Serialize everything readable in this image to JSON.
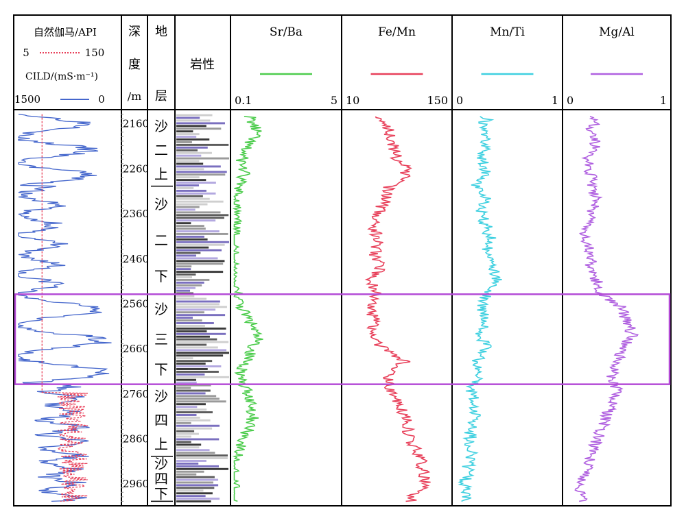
{
  "chart_data": {
    "type": "line",
    "header": {
      "log_col": {
        "gamma_label": "自然伽马/API",
        "gamma_min": "5",
        "gamma_max": "150",
        "cild_label": "CILD/(mS·m⁻¹)",
        "cild_min": "1500",
        "cild_max": "0"
      },
      "depth_label": [
        "深",
        "度",
        "/m"
      ],
      "strata_label": [
        "地",
        "层"
      ],
      "lith_label": "岩性"
    },
    "depth_axis": {
      "range": [
        2130,
        3010
      ],
      "ticks": [
        {
          "value": 2160,
          "label": "2160"
        },
        {
          "value": 2260,
          "label": "2260"
        },
        {
          "value": 2360,
          "label": "2360"
        },
        {
          "value": 2460,
          "label": "2460"
        },
        {
          "value": 2560,
          "label": "2560"
        },
        {
          "value": 2660,
          "label": "2660"
        },
        {
          "value": 2760,
          "label": "2760"
        },
        {
          "value": 2860,
          "label": "2860"
        },
        {
          "value": 2960,
          "label": "2960"
        }
      ]
    },
    "strata": [
      {
        "name": "沙二上",
        "chars": [
          "沙",
          "二",
          "上"
        ],
        "top": 2140,
        "bottom": 2300
      },
      {
        "name": "沙二下",
        "chars": [
          "沙",
          "二",
          "下"
        ],
        "top": 2300,
        "bottom": 2540
      },
      {
        "name": "沙三下",
        "chars": [
          "沙",
          "三",
          "下"
        ],
        "top": 2540,
        "bottom": 2740
      },
      {
        "name": "沙四上",
        "chars": [
          "沙",
          "四",
          "上"
        ],
        "top": 2740,
        "bottom": 2900
      },
      {
        "name": "沙四下",
        "chars": [
          "沙",
          "四",
          "下"
        ],
        "top": 2900,
        "bottom": 3000
      }
    ],
    "highlight_interval": {
      "top": 2540,
      "bottom": 2740,
      "color": "#b44bd6"
    },
    "series": [
      {
        "name": "Sr/Ba",
        "min_label": "0.1",
        "max_label": "5",
        "range": [
          0.1,
          5
        ],
        "color": "#4ccc4c",
        "points": [
          [
            2150,
            0.9
          ],
          [
            2180,
            1.2
          ],
          [
            2210,
            0.7
          ],
          [
            2240,
            0.5
          ],
          [
            2270,
            0.6
          ],
          [
            2300,
            0.3
          ],
          [
            2330,
            0.25
          ],
          [
            2360,
            0.2
          ],
          [
            2400,
            0.15
          ],
          [
            2440,
            0.12
          ],
          [
            2480,
            0.12
          ],
          [
            2520,
            0.15
          ],
          [
            2550,
            0.3
          ],
          [
            2580,
            0.6
          ],
          [
            2610,
            1.0
          ],
          [
            2640,
            1.2
          ],
          [
            2670,
            0.9
          ],
          [
            2700,
            0.6
          ],
          [
            2730,
            0.4
          ],
          [
            2760,
            0.8
          ],
          [
            2790,
            1.0
          ],
          [
            2820,
            1.0
          ],
          [
            2850,
            0.7
          ],
          [
            2880,
            0.4
          ],
          [
            2910,
            0.2
          ],
          [
            2940,
            0.1
          ],
          [
            2970,
            0.1
          ],
          [
            3000,
            0.1
          ]
        ]
      },
      {
        "name": "Fe/Mn",
        "min_label": "10",
        "max_label": "150",
        "range": [
          10,
          150
        ],
        "color": "#e8405a",
        "points": [
          [
            2150,
            60
          ],
          [
            2180,
            70
          ],
          [
            2210,
            75
          ],
          [
            2240,
            80
          ],
          [
            2260,
            95
          ],
          [
            2280,
            90
          ],
          [
            2300,
            70
          ],
          [
            2330,
            65
          ],
          [
            2360,
            55
          ],
          [
            2390,
            50
          ],
          [
            2420,
            55
          ],
          [
            2450,
            50
          ],
          [
            2480,
            60
          ],
          [
            2510,
            45
          ],
          [
            2540,
            55
          ],
          [
            2570,
            45
          ],
          [
            2600,
            50
          ],
          [
            2630,
            45
          ],
          [
            2660,
            60
          ],
          [
            2690,
            90
          ],
          [
            2720,
            70
          ],
          [
            2750,
            70
          ],
          [
            2780,
            80
          ],
          [
            2810,
            90
          ],
          [
            2840,
            95
          ],
          [
            2870,
            100
          ],
          [
            2900,
            110
          ],
          [
            2930,
            115
          ],
          [
            2960,
            120
          ],
          [
            2990,
            100
          ]
        ]
      },
      {
        "name": "Mn/Ti",
        "min_label": "0",
        "max_label": "1",
        "range": [
          0,
          1
        ],
        "color": "#3fd0e0",
        "points": [
          [
            2150,
            0.3
          ],
          [
            2180,
            0.25
          ],
          [
            2210,
            0.3
          ],
          [
            2240,
            0.25
          ],
          [
            2270,
            0.3
          ],
          [
            2300,
            0.2
          ],
          [
            2330,
            0.3
          ],
          [
            2360,
            0.25
          ],
          [
            2390,
            0.3
          ],
          [
            2420,
            0.35
          ],
          [
            2450,
            0.3
          ],
          [
            2480,
            0.35
          ],
          [
            2510,
            0.4
          ],
          [
            2540,
            0.3
          ],
          [
            2570,
            0.25
          ],
          [
            2600,
            0.3
          ],
          [
            2630,
            0.25
          ],
          [
            2660,
            0.3
          ],
          [
            2690,
            0.2
          ],
          [
            2720,
            0.25
          ],
          [
            2750,
            0.15
          ],
          [
            2780,
            0.2
          ],
          [
            2810,
            0.2
          ],
          [
            2840,
            0.15
          ],
          [
            2870,
            0.15
          ],
          [
            2900,
            0.15
          ],
          [
            2930,
            0.12
          ],
          [
            2960,
            0.1
          ],
          [
            2990,
            0.1
          ]
        ]
      },
      {
        "name": "Mg/Al",
        "min_label": "0",
        "max_label": "1",
        "range": [
          0,
          1
        ],
        "color": "#b060e0",
        "points": [
          [
            2150,
            0.3
          ],
          [
            2180,
            0.25
          ],
          [
            2210,
            0.3
          ],
          [
            2240,
            0.2
          ],
          [
            2270,
            0.25
          ],
          [
            2300,
            0.25
          ],
          [
            2330,
            0.3
          ],
          [
            2360,
            0.25
          ],
          [
            2390,
            0.2
          ],
          [
            2420,
            0.2
          ],
          [
            2450,
            0.25
          ],
          [
            2480,
            0.25
          ],
          [
            2510,
            0.3
          ],
          [
            2540,
            0.35
          ],
          [
            2570,
            0.55
          ],
          [
            2600,
            0.6
          ],
          [
            2630,
            0.65
          ],
          [
            2660,
            0.55
          ],
          [
            2690,
            0.5
          ],
          [
            2720,
            0.45
          ],
          [
            2750,
            0.5
          ],
          [
            2780,
            0.45
          ],
          [
            2810,
            0.4
          ],
          [
            2840,
            0.35
          ],
          [
            2870,
            0.3
          ],
          [
            2900,
            0.25
          ],
          [
            2930,
            0.2
          ],
          [
            2960,
            0.15
          ],
          [
            2990,
            0.15
          ]
        ]
      }
    ]
  }
}
